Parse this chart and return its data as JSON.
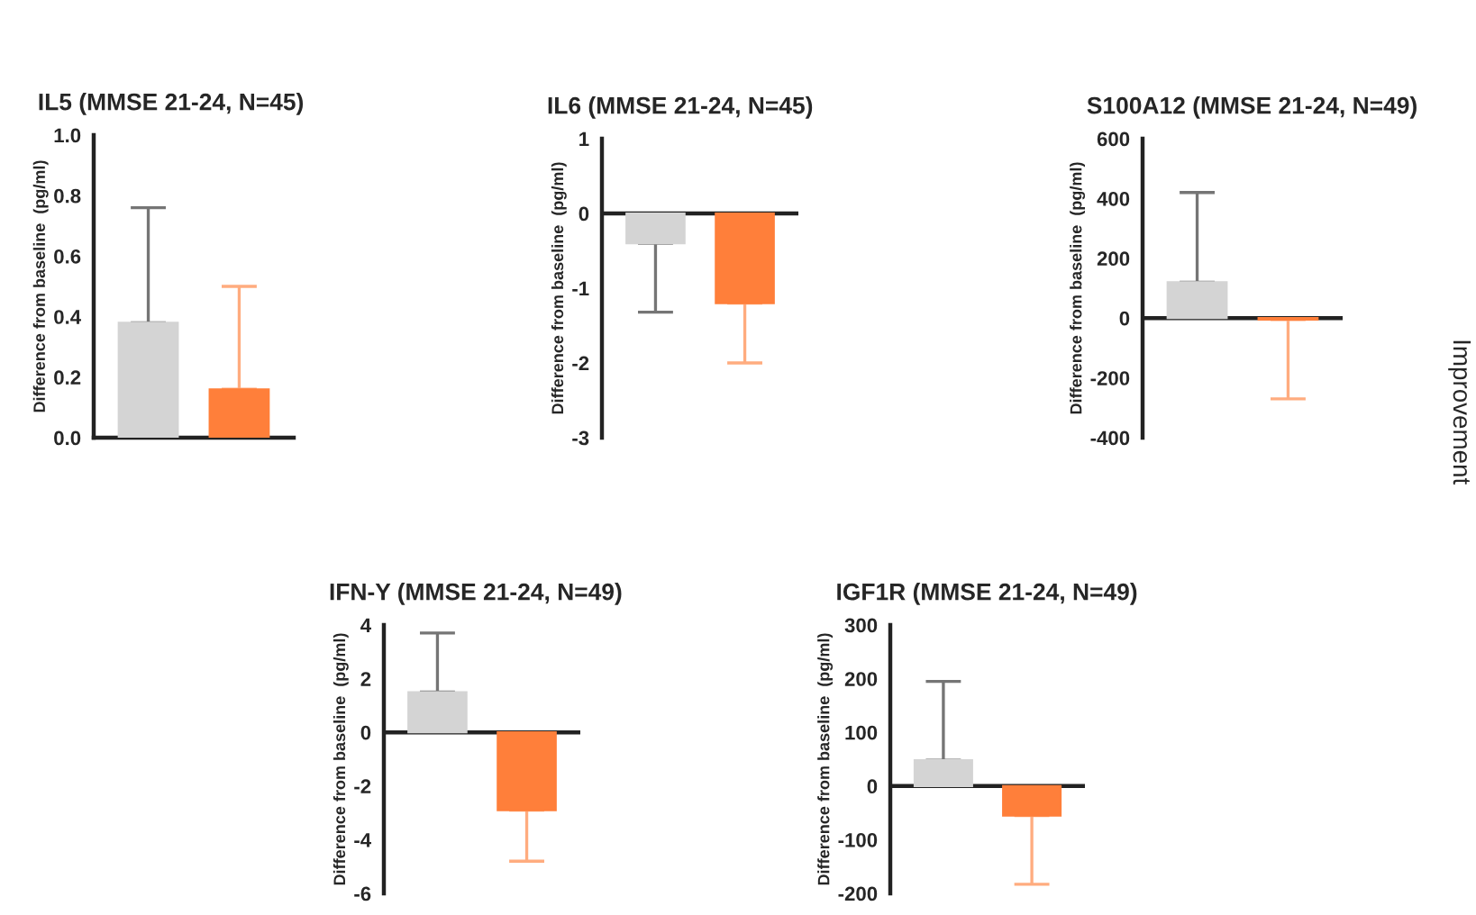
{
  "chart_data": [
    {
      "type": "bar",
      "title": "IL5 (MMSE 21-24, N=45)",
      "ylabel": "Difference from baseline  (pg/ml)",
      "categories": [
        null,
        null
      ],
      "values": [
        0.38,
        0.16
      ],
      "colors": [
        "#d4d4d4",
        "#ff7f3a"
      ],
      "errors": [
        [
          0.38,
          0.76
        ],
        [
          0.16,
          0.5
        ]
      ],
      "ylim": [
        0,
        1.0
      ],
      "yticks": [
        "0.0",
        0.2,
        0.4,
        0.6,
        0.8,
        "1.0"
      ],
      "grid": false
    },
    {
      "type": "bar",
      "title": "IL6 (MMSE 21-24, N=45)",
      "ylabel": "Difference from baseline  (pg/ml)",
      "categories": [
        null,
        null
      ],
      "values": [
        -0.4,
        -1.2
      ],
      "colors": [
        "#d4d4d4",
        "#ff7f3a"
      ],
      "errors": [
        [
          -1.32,
          -0.4
        ],
        [
          -2.0,
          -1.2
        ]
      ],
      "ylim": [
        -3,
        1
      ],
      "yticks": [
        -3,
        -2,
        -1,
        0,
        1
      ],
      "grid": false,
      "ref_lines": [
        {
          "axis": "y",
          "value": 0,
          "color": "#222222"
        }
      ]
    },
    {
      "type": "bar",
      "title": "S100A12 (MMSE 21-24, N=49)",
      "ylabel": "Difference from baseline  (pg/ml)",
      "categories": [
        null,
        null
      ],
      "values": [
        120,
        -5
      ],
      "colors": [
        "#d4d4d4",
        "#ff7f3a"
      ],
      "errors": [
        [
          120,
          420
        ],
        [
          -270,
          -5
        ]
      ],
      "ylim": [
        -400,
        600
      ],
      "yticks": [
        -400,
        -200,
        0,
        200,
        400,
        600
      ],
      "grid": false,
      "ref_lines": [
        {
          "axis": "y",
          "value": 0,
          "color": "#222222"
        }
      ]
    },
    {
      "type": "bar",
      "title": "IFN-Y (MMSE 21-24, N=49)",
      "ylabel": "Difference from baseline  (pg/ml)",
      "categories": [
        null,
        null
      ],
      "values": [
        1.5,
        -2.9
      ],
      "colors": [
        "#d4d4d4",
        "#ff7f3a"
      ],
      "errors": [
        [
          1.5,
          3.7
        ],
        [
          -4.8,
          -2.9
        ]
      ],
      "ylim": [
        -6,
        4
      ],
      "yticks": [
        -6,
        -4,
        -2,
        0,
        2,
        4
      ],
      "grid": false,
      "ref_lines": [
        {
          "axis": "y",
          "value": 0,
          "color": "#222222"
        }
      ]
    },
    {
      "type": "bar",
      "title": "IGF1R (MMSE 21-24, N=49)",
      "ylabel": "Difference from baseline  (pg/ml)",
      "categories": [
        null,
        null
      ],
      "values": [
        48,
        -55
      ],
      "colors": [
        "#d4d4d4",
        "#ff7f3a"
      ],
      "errors": [
        [
          48,
          195
        ],
        [
          -183,
          -55
        ]
      ],
      "ylim": [
        -200,
        300
      ],
      "yticks": [
        -200,
        -100,
        0,
        100,
        200,
        300
      ],
      "grid": false,
      "ref_lines": [
        {
          "axis": "y",
          "value": 0,
          "color": "#222222"
        }
      ],
      "annotations": [
        "Improvement"
      ]
    }
  ]
}
